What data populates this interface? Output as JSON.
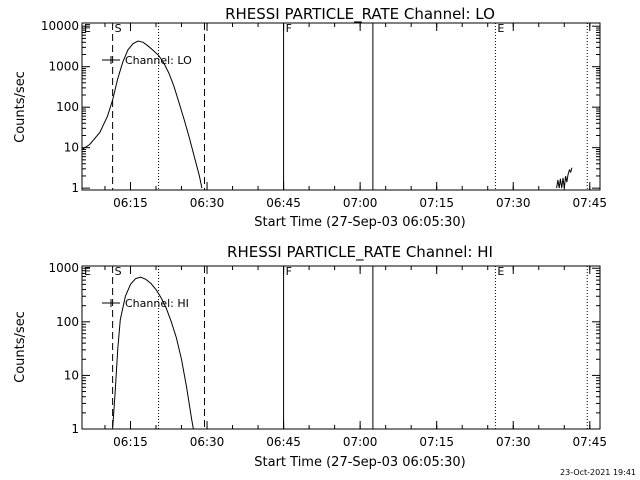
{
  "timestamp": "23-Oct-2021 19:41",
  "chart_data": [
    {
      "type": "line",
      "title": "RHESSI PARTICLE_RATE Channel: LO",
      "xlabel": "Start Time (27-Sep-03 06:05:30)",
      "ylabel": "Counts/sec",
      "y_scale": "log",
      "ylim": [
        0.9,
        12000
      ],
      "xlim": [
        "06:05:30",
        "07:47:00"
      ],
      "x_ticks": [
        "06:15",
        "06:30",
        "06:45",
        "07:00",
        "07:15",
        "07:30",
        "07:45"
      ],
      "y_ticks": [
        "1",
        "10",
        "100",
        "1000",
        "10000"
      ],
      "legend": {
        "entry": "Channel: LO",
        "placement": "top-left"
      },
      "markers": [
        {
          "label": "E",
          "time": "06:05:30",
          "style": "dotted"
        },
        {
          "label": "S",
          "time": "06:11:30",
          "style": "dashed"
        },
        {
          "label": "",
          "time": "06:20:30",
          "style": "dotted"
        },
        {
          "label": "",
          "time": "06:29:30",
          "style": "dashed"
        },
        {
          "label": "F",
          "time": "06:45:00",
          "style": "solid"
        },
        {
          "label": "",
          "time": "07:02:30",
          "style": "solid"
        },
        {
          "label": "E",
          "time": "07:26:30",
          "style": "dotted"
        },
        {
          "label": "",
          "time": "07:44:30",
          "style": "dotted"
        }
      ],
      "series": [
        {
          "name": "Channel: LO",
          "segments": [
            [
              [
                "06:05:30",
                9
              ],
              [
                "06:07:00",
                12
              ],
              [
                "06:09:00",
                24
              ],
              [
                "06:10:30",
                60
              ],
              [
                "06:11:30",
                150
              ],
              [
                "06:12:30",
                500
              ],
              [
                "06:13:30",
                1300
              ],
              [
                "06:14:30",
                2600
              ],
              [
                "06:15:30",
                3700
              ],
              [
                "06:16:30",
                4300
              ],
              [
                "06:17:30",
                4000
              ],
              [
                "06:18:30",
                3200
              ],
              [
                "06:19:30",
                2500
              ],
              [
                "06:20:30",
                1900
              ],
              [
                "06:21:30",
                1250
              ],
              [
                "06:22:30",
                700
              ],
              [
                "06:23:30",
                330
              ],
              [
                "06:24:30",
                130
              ],
              [
                "06:25:30",
                50
              ],
              [
                "06:26:30",
                18
              ],
              [
                "06:27:30",
                6
              ],
              [
                "06:28:30",
                2
              ],
              [
                "06:29:00",
                1
              ]
            ],
            [
              [
                "07:38:30",
                1
              ],
              [
                "07:38:45",
                1.6
              ],
              [
                "07:39:00",
                1
              ],
              [
                "07:39:15",
                1.7
              ],
              [
                "07:39:30",
                1
              ],
              [
                "07:39:45",
                1.8
              ],
              [
                "07:40:00",
                1
              ],
              [
                "07:40:15",
                2.0
              ],
              [
                "07:40:30",
                1.4
              ],
              [
                "07:40:45",
                2.2
              ],
              [
                "07:41:00",
                2.8
              ],
              [
                "07:41:15",
                2.5
              ],
              [
                "07:41:30",
                3.2
              ]
            ]
          ]
        }
      ]
    },
    {
      "type": "line",
      "title": "RHESSI PARTICLE_RATE Channel: HI",
      "xlabel": "Start Time (27-Sep-03 06:05:30)",
      "ylabel": "Counts/sec",
      "y_scale": "log",
      "ylim": [
        1,
        1100
      ],
      "xlim": [
        "06:05:30",
        "07:47:00"
      ],
      "x_ticks": [
        "06:15",
        "06:30",
        "06:45",
        "07:00",
        "07:15",
        "07:30",
        "07:45"
      ],
      "y_ticks": [
        "1",
        "10",
        "100",
        "1000"
      ],
      "legend": {
        "entry": "Channel: HI",
        "placement": "top-left"
      },
      "markers": [
        {
          "label": "E",
          "time": "06:05:30",
          "style": "dotted"
        },
        {
          "label": "S",
          "time": "06:11:30",
          "style": "dashed"
        },
        {
          "label": "",
          "time": "06:20:30",
          "style": "dotted"
        },
        {
          "label": "",
          "time": "06:29:30",
          "style": "dashed"
        },
        {
          "label": "F",
          "time": "06:45:00",
          "style": "solid"
        },
        {
          "label": "",
          "time": "07:02:30",
          "style": "solid"
        },
        {
          "label": "E",
          "time": "07:26:30",
          "style": "dotted"
        },
        {
          "label": "",
          "time": "07:44:30",
          "style": "dotted"
        }
      ],
      "series": [
        {
          "name": "Channel: HI",
          "segments": [
            [
              [
                "06:11:30",
                1
              ],
              [
                "06:12:00",
                5
              ],
              [
                "06:12:30",
                30
              ],
              [
                "06:13:00",
                110
              ],
              [
                "06:14:00",
                300
              ],
              [
                "06:15:00",
                500
              ],
              [
                "06:16:00",
                640
              ],
              [
                "06:17:00",
                680
              ],
              [
                "06:18:00",
                620
              ],
              [
                "06:19:00",
                520
              ],
              [
                "06:20:00",
                400
              ],
              [
                "06:21:00",
                280
              ],
              [
                "06:22:00",
                180
              ],
              [
                "06:23:00",
                100
              ],
              [
                "06:24:00",
                50
              ],
              [
                "06:25:00",
                20
              ],
              [
                "06:26:00",
                6
              ],
              [
                "06:27:00",
                1.5
              ],
              [
                "06:27:20",
                1
              ]
            ]
          ]
        }
      ]
    }
  ]
}
